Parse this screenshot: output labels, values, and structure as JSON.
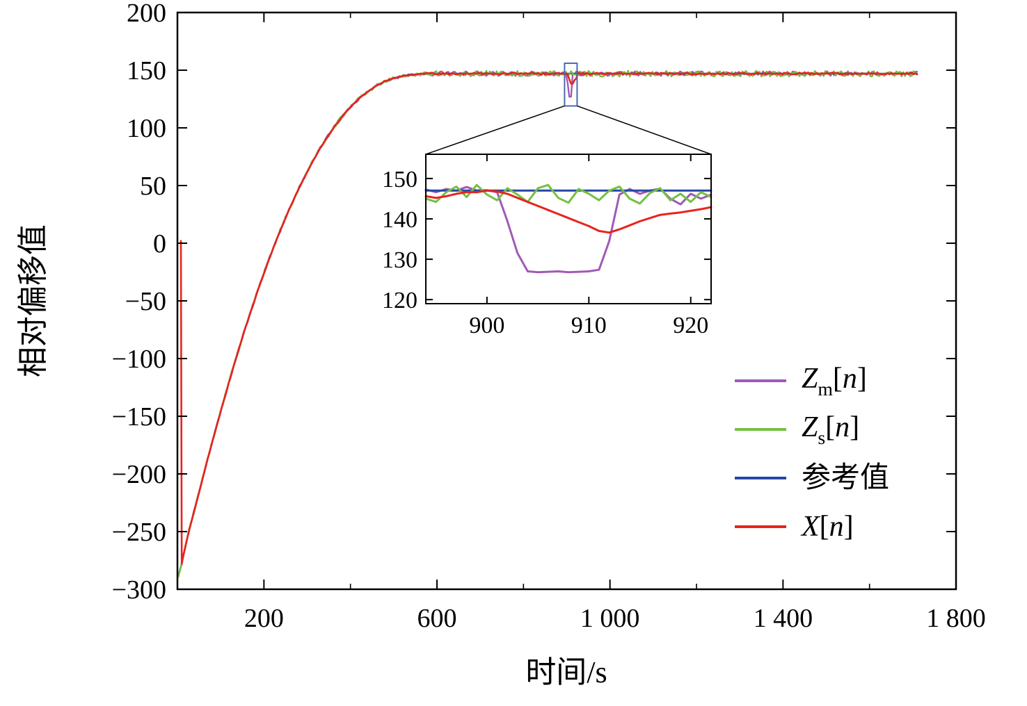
{
  "chart_data": {
    "type": "line",
    "title": "",
    "xlabel": "时间/s",
    "ylabel": "相对偏移值",
    "xlim": [
      0,
      1800
    ],
    "ylim": [
      -300,
      200
    ],
    "xticks": {
      "values": [
        200,
        600,
        1000,
        1400,
        1800
      ],
      "labels": [
        "200",
        "600",
        "1 000",
        "1 400",
        "1 800"
      ],
      "minor": [
        400,
        800,
        1200,
        1600
      ]
    },
    "yticks": {
      "values": [
        200,
        150,
        100,
        50,
        0,
        -50,
        -100,
        -150,
        -200,
        -250,
        -300
      ],
      "labels": [
        "200",
        "150",
        "100",
        "50",
        "0",
        "−50",
        "−100",
        "−150",
        "−200",
        "−250",
        "−300"
      ]
    },
    "plateau": 147,
    "t_end": 1710,
    "sample_step": 4,
    "noise_seed": 42,
    "rise_curve": [
      [
        0,
        -290
      ],
      [
        25,
        -252
      ],
      [
        50,
        -216
      ],
      [
        75,
        -180
      ],
      [
        100,
        -146
      ],
      [
        125,
        -113
      ],
      [
        150,
        -82
      ],
      [
        175,
        -53
      ],
      [
        200,
        -26
      ],
      [
        225,
        -1
      ],
      [
        250,
        22
      ],
      [
        275,
        43
      ],
      [
        300,
        62
      ],
      [
        325,
        79
      ],
      [
        350,
        94
      ],
      [
        375,
        107
      ],
      [
        400,
        118
      ],
      [
        425,
        127
      ],
      [
        450,
        134
      ],
      [
        475,
        139.5
      ],
      [
        500,
        143
      ],
      [
        525,
        145.2
      ],
      [
        550,
        146.4
      ],
      [
        575,
        147
      ]
    ],
    "x_spike": {
      "t": 8,
      "y_top": 2
    },
    "dip_overrides": {
      "zm": {
        "t0": 901,
        "t1": 914
      },
      "x": {
        "t0": 899,
        "t1": 923
      }
    },
    "series": [
      {
        "id": "zm",
        "color": "#a05ab4",
        "noise": 2.0,
        "seed": 11,
        "label_parts": [
          {
            "t": "Z",
            "i": true
          },
          {
            "t": "m",
            "sub": true
          },
          {
            "t": "["
          },
          {
            "t": "n",
            "i": true
          },
          {
            "t": "]"
          }
        ]
      },
      {
        "id": "zs",
        "color": "#74c044",
        "noise": 2.5,
        "seed": 23,
        "label_parts": [
          {
            "t": "Z",
            "i": true
          },
          {
            "t": "s",
            "sub": true
          },
          {
            "t": "["
          },
          {
            "t": "n",
            "i": true
          },
          {
            "t": "]"
          }
        ]
      },
      {
        "id": "ref",
        "color": "#2646a8",
        "noise": 0,
        "seed": 5,
        "label_parts": [
          {
            "t": "参考值"
          }
        ]
      },
      {
        "id": "x",
        "color": "#e8231d",
        "noise": 0.8,
        "seed": 37,
        "label_parts": [
          {
            "t": "X",
            "i": true
          },
          {
            "t": "["
          },
          {
            "t": "n",
            "i": true
          },
          {
            "t": "]"
          }
        ]
      }
    ],
    "draw_order": [
      "zm",
      "ref",
      "zs",
      "x"
    ],
    "zoom_rect": {
      "x0": 895,
      "x1": 924,
      "y0": 119,
      "y1": 156,
      "color": "#4a69b4"
    },
    "inset": {
      "xlim": [
        894,
        922
      ],
      "ylim": [
        119,
        156
      ],
      "xticks": {
        "values": [
          900,
          910,
          920
        ],
        "labels": [
          "900",
          "910",
          "920"
        ]
      },
      "yticks": {
        "values": [
          120,
          130,
          140,
          150
        ],
        "labels": [
          "120",
          "130",
          "140",
          "150"
        ]
      },
      "ref_value": 147,
      "x": [
        894,
        895,
        896,
        897,
        898,
        899,
        900,
        901,
        902,
        903,
        904,
        905,
        906,
        907,
        908,
        909,
        910,
        911,
        912,
        913,
        914,
        915,
        916,
        917,
        918,
        919,
        920,
        921,
        922
      ],
      "zm": [
        147.3,
        146.6,
        147.4,
        147.0,
        147.9,
        147.0,
        147.1,
        146.6,
        139.5,
        131.5,
        127.0,
        126.8,
        126.9,
        127.0,
        126.8,
        126.9,
        127.0,
        127.4,
        134.5,
        146.0,
        147.4,
        146.2,
        147.0,
        147.5,
        145.0,
        143.6,
        146.2,
        145.0,
        146.0
      ],
      "zs": [
        145.0,
        144.2,
        146.6,
        148.0,
        145.4,
        148.4,
        146.0,
        144.6,
        147.6,
        146.0,
        144.2,
        147.6,
        148.4,
        145.2,
        144.0,
        147.4,
        146.2,
        144.6,
        147.0,
        148.0,
        145.0,
        143.8,
        146.4,
        147.6,
        144.6,
        146.2,
        144.2,
        146.6,
        145.4
      ],
      "xn": [
        145.6,
        145.2,
        145.6,
        146.2,
        146.6,
        146.6,
        147.0,
        146.8,
        146.2,
        145.2,
        144.2,
        143.2,
        142.2,
        141.2,
        140.2,
        139.2,
        138.2,
        137.0,
        136.6,
        137.4,
        138.4,
        139.4,
        140.2,
        141.0,
        141.3,
        141.6,
        142.0,
        142.4,
        142.9
      ]
    }
  }
}
